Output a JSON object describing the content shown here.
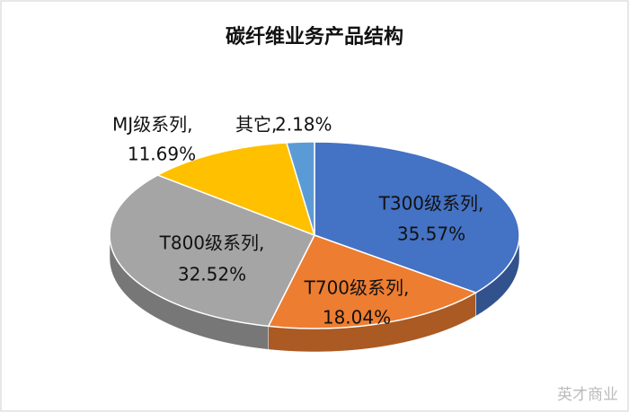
{
  "chart_data": {
    "type": "pie3d",
    "title": "碳纤维业务产品结构",
    "categories": [
      "T300级系列,",
      "T700级系列,",
      "T800级系列,",
      "MJ级系列,",
      "其它,"
    ],
    "values": [
      35.57,
      18.04,
      32.52,
      11.69,
      2.18
    ],
    "value_labels": [
      "35.57%",
      "18.04%",
      "32.52%",
      "11.69%",
      "2.18%"
    ],
    "colors": [
      "#4472c4",
      "#ed7d31",
      "#a5a5a5",
      "#ffc000",
      "#5b9bd5"
    ]
  },
  "watermark": "英才商业"
}
